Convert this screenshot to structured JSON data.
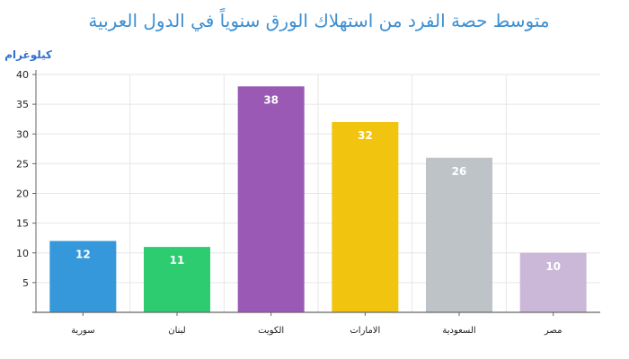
{
  "chart_data": {
    "type": "bar",
    "title": "متوسط حصة الفرد من استهلاك الورق سنوياً في الدول العربية",
    "ylabel": "كيلوغرام",
    "xlabel": "",
    "categories": [
      "سورية",
      "لبنان",
      "الكويت",
      "الامارات",
      "السعودية",
      "مصر"
    ],
    "values": [
      12,
      11,
      38,
      32,
      26,
      10
    ],
    "colors": [
      "#3498db",
      "#2ecc71",
      "#9b59b6",
      "#f1c40f",
      "#bdc3c7",
      "#cbb8d8"
    ],
    "ylim": [
      0,
      40
    ],
    "yticks": [
      5,
      10,
      15,
      20,
      25,
      30,
      35,
      40
    ],
    "grid": true,
    "data_labels": true
  }
}
